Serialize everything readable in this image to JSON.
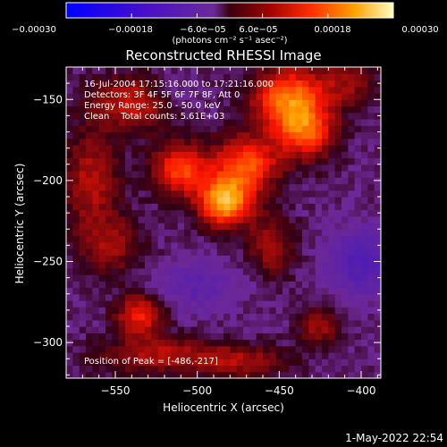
{
  "chart_data": {
    "type": "heatmap",
    "title": "Reconstructed RHESSI Image",
    "xlabel": "Heliocentric X (arcsec)",
    "ylabel": "Heliocentric Y (arcsec)",
    "xlim": [
      -580,
      -388
    ],
    "ylim": [
      -322,
      -130
    ],
    "xticks": [
      -550,
      -500,
      -450,
      -400
    ],
    "yticks": [
      -300,
      -250,
      -200,
      -150
    ],
    "colorbar": {
      "min": -0.0003,
      "max": 0.0003,
      "ticks": [
        "-0.00030",
        "-0.00018",
        "-6.0e-05",
        "6.0e-05",
        "0.00018",
        "0.00030"
      ],
      "tick_values": [
        -0.0003,
        -0.00018,
        -6e-05,
        6e-05,
        0.00018,
        0.0003
      ],
      "unit_label": "(photons cm⁻² s⁻¹ asec⁻²)"
    },
    "annotations": [
      "16-Jul-2004 17:15:16.000 to 17:21:16.000",
      "Detectors: 3F 4F 5F 6F 7F 8F, Att 0",
      "Energy Range: 25.0 - 50.0 keV",
      "Clean    Total counts: 5.61E+03"
    ],
    "peak_label": "Position of Peak = [-486,-217]",
    "peak": [
      -486,
      -217
    ],
    "features": [
      {
        "x": -483,
        "y": -213,
        "sx": 11,
        "sy": 10,
        "v": 0.00023
      },
      {
        "x": -470,
        "y": -190,
        "sx": 14,
        "sy": 12,
        "v": 0.00016
      },
      {
        "x": -445,
        "y": -150,
        "sx": 15,
        "sy": 14,
        "v": 0.00018
      },
      {
        "x": -433,
        "y": -170,
        "sx": 12,
        "sy": 12,
        "v": 0.00014
      },
      {
        "x": -510,
        "y": -193,
        "sx": 12,
        "sy": 11,
        "v": 0.00015
      },
      {
        "x": -540,
        "y": -152,
        "sx": 18,
        "sy": 12,
        "v": 0.0001
      },
      {
        "x": -565,
        "y": -200,
        "sx": 12,
        "sy": 22,
        "v": 9e-05
      },
      {
        "x": -552,
        "y": -240,
        "sx": 14,
        "sy": 13,
        "v": 7e-05
      },
      {
        "x": -455,
        "y": -240,
        "sx": 10,
        "sy": 14,
        "v": 8e-05
      },
      {
        "x": -535,
        "y": -283,
        "sx": 10,
        "sy": 9,
        "v": 0.00013
      },
      {
        "x": -520,
        "y": -308,
        "sx": 28,
        "sy": 8,
        "v": 9e-05
      },
      {
        "x": -470,
        "y": -312,
        "sx": 18,
        "sy": 7,
        "v": 7e-05
      },
      {
        "x": -425,
        "y": -290,
        "sx": 9,
        "sy": 8,
        "v": 8e-05
      },
      {
        "x": -410,
        "y": -140,
        "sx": 14,
        "sy": 10,
        "v": 7e-05
      },
      {
        "x": -500,
        "y": -265,
        "sx": 18,
        "sy": 10,
        "v": -6e-05
      },
      {
        "x": -400,
        "y": -250,
        "sx": 14,
        "sy": 14,
        "v": -9e-05
      },
      {
        "x": -515,
        "y": -145,
        "sx": 8,
        "sy": 8,
        "v": -4e-05
      }
    ]
  },
  "footer": {
    "date": "1-May-2022 22:54"
  }
}
